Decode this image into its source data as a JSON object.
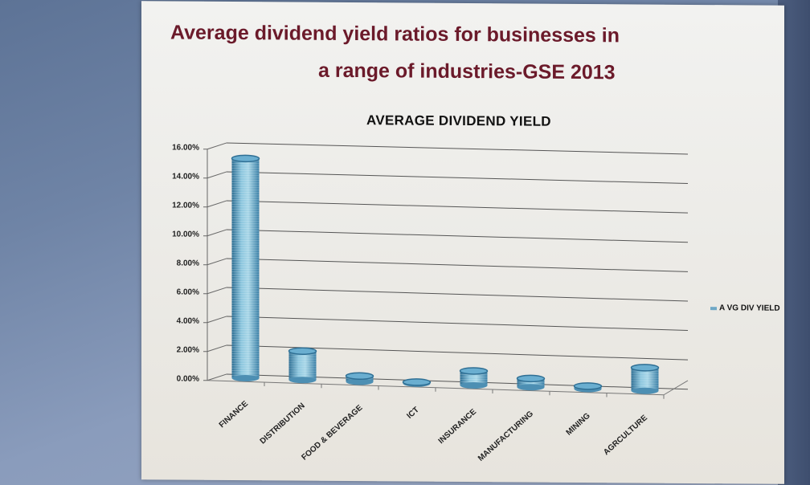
{
  "slide": {
    "title_line1": "Average dividend yield ratios for businesses in",
    "title_line2": "a range of industries-GSE  2013"
  },
  "chart_data": {
    "type": "bar",
    "style": "3d-cylinder",
    "title": "AVERAGE  DIVIDEND  YIELD",
    "xlabel": "",
    "ylabel": "",
    "categories": [
      "FINANCE",
      "DISTRIBUTION",
      "FOOD & BEVERAGE",
      "ICT",
      "INSURANCE",
      "MANUFACTURING",
      "MINING",
      "AGRCULTURE"
    ],
    "series": [
      {
        "name": "AVG DIV YIELD",
        "values": [
          15.2,
          2.0,
          0.4,
          0.1,
          1.0,
          0.6,
          0.2,
          1.6
        ],
        "color": "#6fa8c6"
      }
    ],
    "yticks": [
      "16.00%",
      "14.00%",
      "12.00%",
      "10.00%",
      "8.00%",
      "6.00%",
      "4.00%",
      "2.00%",
      "0.00%"
    ],
    "ylim": [
      0,
      16
    ],
    "value_format": "percent",
    "grid": true,
    "legend_position": "right"
  },
  "legend": {
    "label": "A VG DIV YIELD"
  },
  "colors": {
    "title": "#6b1a2a",
    "bar": "#6fa8c6",
    "bar_dark": "#2f6f94",
    "grid": "#555555"
  }
}
